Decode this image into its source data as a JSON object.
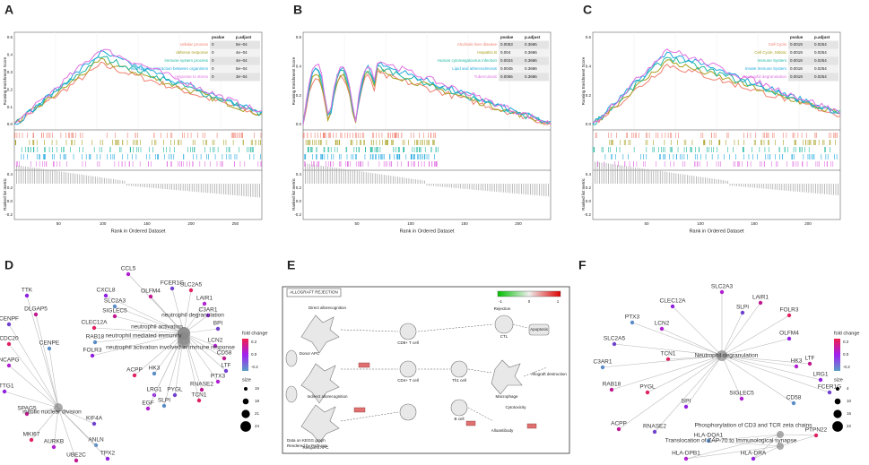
{
  "labels": [
    "A",
    "B",
    "C",
    "D",
    "E",
    "F"
  ],
  "gsea": [
    {
      "y_label": "Running Enrichment Score",
      "metric_label": "Ranked list metric",
      "x_label": "Rank in Ordered Dataset",
      "x_ticks": [
        "50",
        "100",
        "150",
        "200",
        "250"
      ],
      "es_ticks": [
        "0.5",
        "0.4",
        "0.3",
        "0.2",
        "0.1",
        "0.0"
      ],
      "metric_ticks": [
        "0.4",
        "0.2",
        "0.0",
        "-0.2"
      ],
      "table": {
        "header": [
          "pvalue",
          "p.adjust"
        ],
        "rows": [
          {
            "name": "cellular process",
            "color": "#f08070",
            "pvalue": "0",
            "p_adjust": "5e−04"
          },
          {
            "name": "defense response",
            "color": "#a8a020",
            "pvalue": "0",
            "p_adjust": "4e−04"
          },
          {
            "name": "immune system process",
            "color": "#20b8a0",
            "pvalue": "0",
            "p_adjust": "4e−04"
          },
          {
            "name": "interspecies interaction between organisms",
            "color": "#20a8e0",
            "pvalue": "0",
            "p_adjust": "5e−04"
          },
          {
            "name": "response to stress",
            "color": "#e070e0",
            "pvalue": "0",
            "p_adjust": "3e−04"
          }
        ]
      }
    },
    {
      "y_label": "Running Enrichment Score",
      "metric_label": "Ranked list metric",
      "x_label": "Rank in Ordered Dataset",
      "x_ticks": [
        "50",
        "100",
        "150",
        "200"
      ],
      "es_ticks": [
        "0.6",
        "0.4",
        "0.2",
        "0.0"
      ],
      "metric_ticks": [
        "0.4",
        "0.2",
        "0.0",
        "-0.2"
      ],
      "table": {
        "header": [
          "pvalue",
          "p.adjust"
        ],
        "rows": [
          {
            "name": "Alcoholic liver disease",
            "color": "#f08070",
            "pvalue": "0.0053",
            "p_adjust": "0.3686"
          },
          {
            "name": "Hepatitis B",
            "color": "#a8a020",
            "pvalue": "0.004",
            "p_adjust": "0.3686"
          },
          {
            "name": "Human cytomegalovirus infection",
            "color": "#20b8a0",
            "pvalue": "0.0024",
            "p_adjust": "0.3686"
          },
          {
            "name": "Lipid and atherosclerosis",
            "color": "#20a8e0",
            "pvalue": "0.0045",
            "p_adjust": "0.3686"
          },
          {
            "name": "Tuberculosis",
            "color": "#e070e0",
            "pvalue": "0.0065",
            "p_adjust": "0.3686"
          }
        ]
      }
    },
    {
      "y_label": "Running Enrichment Score",
      "metric_label": "Ranked list metric",
      "x_label": "Rank in Ordered Dataset",
      "x_ticks": [
        "50",
        "100",
        "150",
        "200"
      ],
      "es_ticks": [
        "0.6",
        "0.4",
        "0.2",
        "0.0"
      ],
      "metric_ticks": [
        "0.4",
        "0.2",
        "0.0",
        "-0.2"
      ],
      "table": {
        "header": [
          "pvalue",
          "p.adjust"
        ],
        "rows": [
          {
            "name": "Cell Cycle",
            "color": "#f08070",
            "pvalue": "0.0019",
            "p_adjust": "0.0254"
          },
          {
            "name": "Cell Cycle, Mitotic",
            "color": "#a8a020",
            "pvalue": "0.0019",
            "p_adjust": "0.0254"
          },
          {
            "name": "Immune System",
            "color": "#20b8a0",
            "pvalue": "0.0018",
            "p_adjust": "0.0254"
          },
          {
            "name": "Innate Immune System",
            "color": "#20a8e0",
            "pvalue": "0.0018",
            "p_adjust": "0.0254"
          },
          {
            "name": "Neutrophil degranulation",
            "color": "#e070e0",
            "pvalue": "0.0019",
            "p_adjust": "0.0254"
          }
        ]
      }
    }
  ],
  "networks": [
    {
      "hubs": [
        "neutrophil activation",
        "neutrophil degranulation",
        "neutrophil mediated immunity",
        "neutrophil activation involved in immune response",
        "mitotic nuclear division"
      ],
      "genes": [
        "CCL5",
        "CXCL8",
        "OLFM4",
        "FCER1G",
        "SLC2A5",
        "SLC2A3",
        "LAIR1",
        "C3AR1",
        "SIGLEC5",
        "BPI",
        "CLEC12A",
        "RAB18",
        "LCN2",
        "FOLR3",
        "CD58",
        "LTF",
        "ACPP",
        "HK3",
        "PTX3",
        "LRG1",
        "RNASE2",
        "PYGL",
        "TCN1",
        "SLPI",
        "EGF",
        "TTK",
        "DLGAP5",
        "CENPF",
        "CDC20",
        "CENPE",
        "NCAPG",
        "PTTG1",
        "SPAG5",
        "KIF4A",
        "MKI67",
        "ANLN",
        "AURKB",
        "TPX2",
        "UBE2C"
      ],
      "legend": {
        "fold_title": "fold change",
        "fold_ticks": [
          "0.2",
          "0.0",
          "-0.2"
        ],
        "size_title": "size",
        "size_ticks": [
          "15",
          "18",
          "21",
          "24"
        ]
      }
    },
    {
      "hubs": [
        "Neutrophil degranulation",
        "Phosphorylation of CD3 and TCR zeta chains",
        "Translocation of ZAP-70 to Immunological synapse"
      ],
      "genes": [
        "SLC2A3",
        "CLEC12A",
        "LAIR1",
        "SLPI",
        "FOLR3",
        "PTX3",
        "LCN2",
        "OLFM4",
        "LTF",
        "SLC2A5",
        "TCN1",
        "C3AR1",
        "HK3",
        "LRG1",
        "RAB18",
        "FCER1G",
        "PYGL",
        "CD58",
        "SIGLEC5",
        "BPI",
        "ACPP",
        "RNASE2",
        "PTPN22",
        "HLA-DQA1",
        "HLA-DPB1",
        "HLA-DRA"
      ],
      "legend": {
        "fold_title": "fold change",
        "fold_ticks": [
          "0.2",
          "0.0",
          "-0.2"
        ],
        "size_title": "size",
        "size_ticks": [
          "4",
          "10",
          "16",
          "22"
        ]
      }
    }
  ],
  "pathway": {
    "title": "ALLOGRAFT REJECTION",
    "scale": [
      "-1",
      "0",
      "1"
    ],
    "labels": [
      "Direct allorecognition",
      "Indirect allorecognition",
      "Rejection",
      "Donor APC",
      "CD8+ T cell",
      "CD4+ T cell",
      "Th1 cell",
      "Macrophage",
      "B cell",
      "Alloantibody",
      "Recipient APC",
      "Allograft destruction",
      "CTL",
      "Apoptosis",
      "Cytotoxicity"
    ],
    "footer": [
      "Data on KEGG graph",
      "Rendered by Pathview"
    ]
  }
}
